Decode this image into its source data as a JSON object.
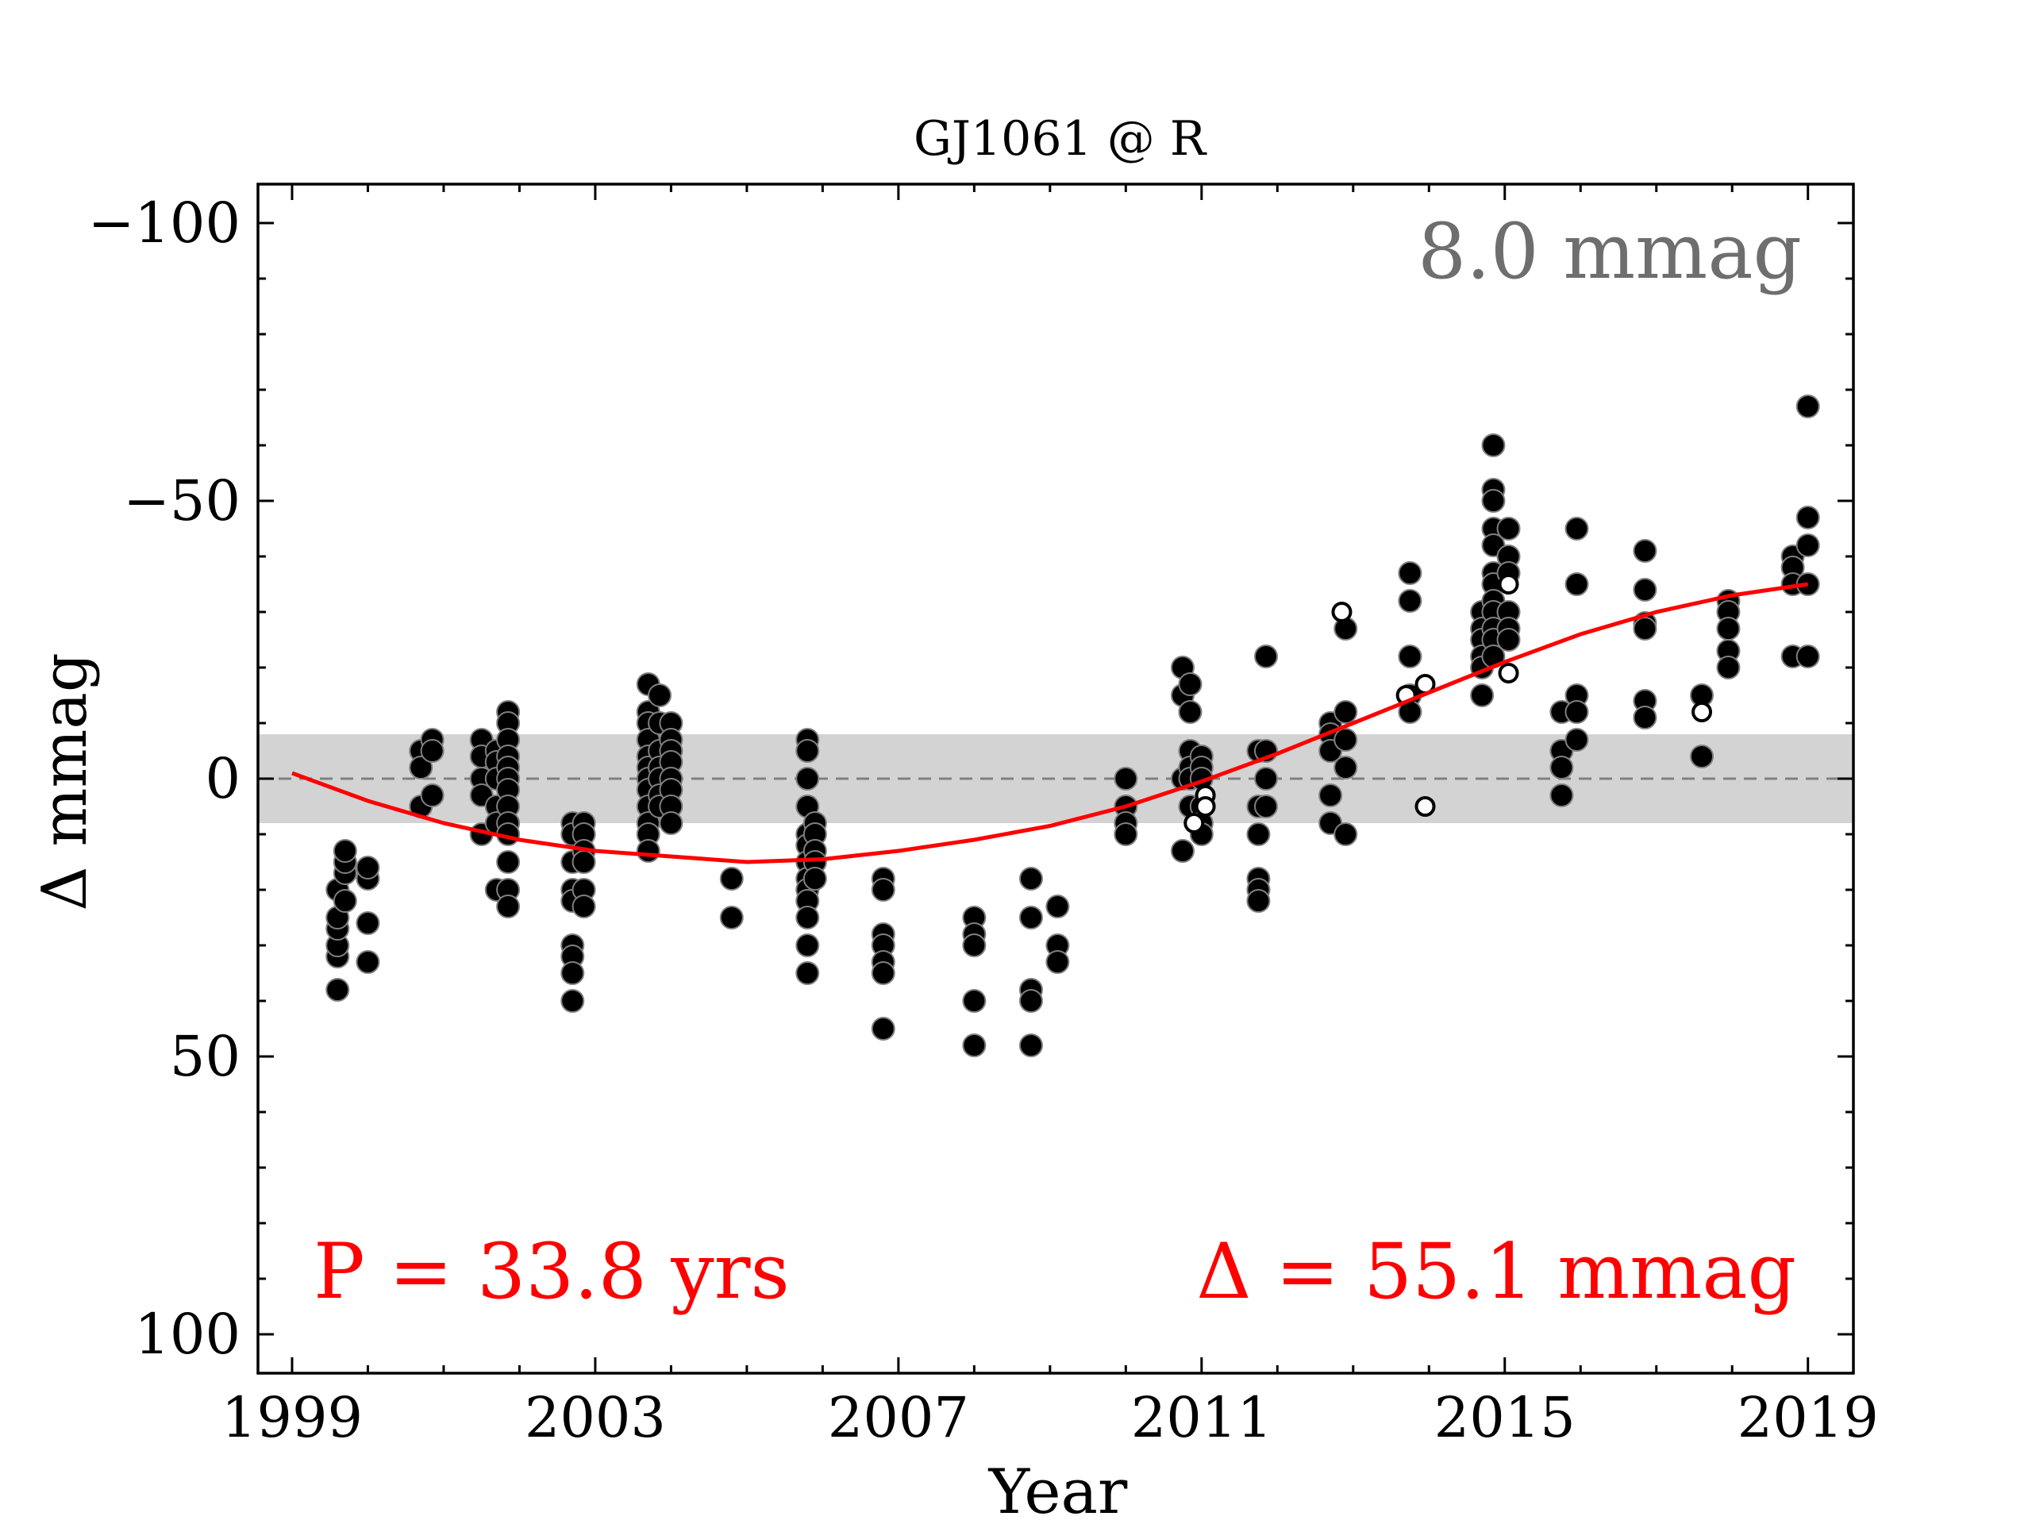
{
  "chart_data": {
    "type": "scatter",
    "title": "GJ1061 @ R",
    "xlabel": "Year",
    "ylabel": "Δ  mmag",
    "xlim": [
      1998.55,
      2019.6
    ],
    "ylim": [
      -107,
      107
    ],
    "y_inverted": true,
    "x_ticks": [
      1999,
      2003,
      2007,
      2011,
      2015,
      2019
    ],
    "x_tick_labels": [
      "1999",
      "2003",
      "2007",
      "2011",
      "2015",
      "2019"
    ],
    "y_ticks": [
      -100,
      -50,
      0,
      50,
      100
    ],
    "y_tick_labels": [
      "−100",
      "−50",
      "0",
      "50",
      "100"
    ],
    "band": {
      "y_min": -8,
      "y_max": 8,
      "color": "#d3d3d3"
    },
    "zero_line_color": "#808080",
    "fit_color": "#ff0000",
    "annotations": {
      "scatter_text": "8.0 mmag",
      "period_text": "P = 33.8 yrs",
      "amplitude_text": "Δ = 55.1 mmag",
      "scatter_color": "#6e6e6e",
      "fit_text_color": "#ff0000"
    },
    "fit_curve": {
      "x": [
        1999.0,
        2000.0,
        2001.0,
        2002.0,
        2003.0,
        2004.0,
        2005.0,
        2006.0,
        2007.0,
        2008.0,
        2009.0,
        2010.0,
        2011.0,
        2012.0,
        2013.0,
        2014.0,
        2015.0,
        2016.0,
        2017.0,
        2018.0,
        2019.0
      ],
      "y": [
        -1,
        4,
        8,
        11,
        13,
        14,
        15,
        14.5,
        13,
        11,
        8.5,
        5,
        0.5,
        -4.5,
        -10,
        -15.5,
        -21,
        -26,
        -30,
        -33,
        -35
      ]
    },
    "series": [
      {
        "marker": "filled",
        "points": [
          [
            1999.6,
            38
          ],
          [
            1999.6,
            32
          ],
          [
            1999.6,
            30
          ],
          [
            1999.6,
            27
          ],
          [
            1999.6,
            25
          ],
          [
            1999.6,
            20
          ],
          [
            1999.7,
            22
          ],
          [
            1999.7,
            17
          ],
          [
            1999.7,
            15
          ],
          [
            1999.7,
            13
          ],
          [
            2000.0,
            33
          ],
          [
            2000.0,
            26
          ],
          [
            2000.0,
            18
          ],
          [
            2000.0,
            16
          ],
          [
            2000.7,
            -5
          ],
          [
            2000.7,
            -2
          ],
          [
            2000.7,
            5
          ],
          [
            2000.85,
            -7
          ],
          [
            2000.85,
            -5
          ],
          [
            2000.85,
            3
          ],
          [
            2001.5,
            -7
          ],
          [
            2001.5,
            -4
          ],
          [
            2001.5,
            0
          ],
          [
            2001.5,
            3
          ],
          [
            2001.5,
            10
          ],
          [
            2001.7,
            -5
          ],
          [
            2001.7,
            -3
          ],
          [
            2001.7,
            0
          ],
          [
            2001.7,
            5
          ],
          [
            2001.7,
            8
          ],
          [
            2001.7,
            20
          ],
          [
            2001.85,
            -12
          ],
          [
            2001.85,
            -10
          ],
          [
            2001.85,
            -7
          ],
          [
            2001.85,
            -4
          ],
          [
            2001.85,
            -2
          ],
          [
            2001.85,
            0
          ],
          [
            2001.85,
            2
          ],
          [
            2001.85,
            5
          ],
          [
            2001.85,
            8
          ],
          [
            2001.85,
            10
          ],
          [
            2001.85,
            15
          ],
          [
            2001.85,
            20
          ],
          [
            2001.85,
            23
          ],
          [
            2002.7,
            8
          ],
          [
            2002.7,
            10
          ],
          [
            2002.7,
            15
          ],
          [
            2002.7,
            20
          ],
          [
            2002.7,
            22
          ],
          [
            2002.7,
            30
          ],
          [
            2002.7,
            32
          ],
          [
            2002.7,
            35
          ],
          [
            2002.7,
            40
          ],
          [
            2002.85,
            8
          ],
          [
            2002.85,
            10
          ],
          [
            2002.85,
            13
          ],
          [
            2002.85,
            15
          ],
          [
            2002.85,
            20
          ],
          [
            2002.85,
            23
          ],
          [
            2003.7,
            -17
          ],
          [
            2003.7,
            -12
          ],
          [
            2003.7,
            -10
          ],
          [
            2003.7,
            -7
          ],
          [
            2003.7,
            -4
          ],
          [
            2003.7,
            -2
          ],
          [
            2003.7,
            0
          ],
          [
            2003.7,
            2
          ],
          [
            2003.7,
            5
          ],
          [
            2003.7,
            8
          ],
          [
            2003.7,
            10
          ],
          [
            2003.7,
            13
          ],
          [
            2003.85,
            -15
          ],
          [
            2003.85,
            -10
          ],
          [
            2003.85,
            -5
          ],
          [
            2003.85,
            -2
          ],
          [
            2003.85,
            0
          ],
          [
            2003.85,
            3
          ],
          [
            2003.85,
            5
          ],
          [
            2004.0,
            -10
          ],
          [
            2004.0,
            -7
          ],
          [
            2004.0,
            -5
          ],
          [
            2004.0,
            -3
          ],
          [
            2004.0,
            0
          ],
          [
            2004.0,
            2
          ],
          [
            2004.0,
            5
          ],
          [
            2004.0,
            8
          ],
          [
            2004.8,
            18
          ],
          [
            2004.8,
            25
          ],
          [
            2005.8,
            -7
          ],
          [
            2005.8,
            -5
          ],
          [
            2005.8,
            0
          ],
          [
            2005.8,
            5
          ],
          [
            2005.8,
            10
          ],
          [
            2005.8,
            12
          ],
          [
            2005.8,
            15
          ],
          [
            2005.8,
            18
          ],
          [
            2005.8,
            20
          ],
          [
            2005.8,
            22
          ],
          [
            2005.8,
            25
          ],
          [
            2005.8,
            30
          ],
          [
            2005.8,
            35
          ],
          [
            2005.9,
            8
          ],
          [
            2005.9,
            10
          ],
          [
            2005.9,
            13
          ],
          [
            2005.9,
            15
          ],
          [
            2005.9,
            18
          ],
          [
            2006.8,
            18
          ],
          [
            2006.8,
            20
          ],
          [
            2006.8,
            28
          ],
          [
            2006.8,
            30
          ],
          [
            2006.8,
            33
          ],
          [
            2006.8,
            35
          ],
          [
            2006.8,
            45
          ],
          [
            2008.0,
            25
          ],
          [
            2008.0,
            28
          ],
          [
            2008.0,
            30
          ],
          [
            2008.0,
            40
          ],
          [
            2008.0,
            48
          ],
          [
            2008.75,
            18
          ],
          [
            2008.75,
            25
          ],
          [
            2008.75,
            38
          ],
          [
            2008.75,
            40
          ],
          [
            2008.75,
            48
          ],
          [
            2009.1,
            23
          ],
          [
            2009.1,
            30
          ],
          [
            2009.1,
            33
          ],
          [
            2010.0,
            0
          ],
          [
            2010.0,
            5
          ],
          [
            2010.0,
            8
          ],
          [
            2010.0,
            10
          ],
          [
            2010.75,
            -20
          ],
          [
            2010.75,
            -15
          ],
          [
            2010.75,
            0
          ],
          [
            2010.75,
            13
          ],
          [
            2010.85,
            -17
          ],
          [
            2010.85,
            -12
          ],
          [
            2010.85,
            -5
          ],
          [
            2010.85,
            -2
          ],
          [
            2010.85,
            0
          ],
          [
            2010.85,
            5
          ],
          [
            2011.0,
            -4
          ],
          [
            2011.0,
            -2
          ],
          [
            2011.0,
            0
          ],
          [
            2011.0,
            5
          ],
          [
            2011.0,
            8
          ],
          [
            2011.0,
            10
          ],
          [
            2011.75,
            -5
          ],
          [
            2011.75,
            5
          ],
          [
            2011.75,
            10
          ],
          [
            2011.75,
            18
          ],
          [
            2011.75,
            20
          ],
          [
            2011.75,
            22
          ],
          [
            2011.85,
            -22
          ],
          [
            2011.85,
            -5
          ],
          [
            2011.85,
            0
          ],
          [
            2011.85,
            5
          ],
          [
            2012.7,
            -10
          ],
          [
            2012.7,
            -8
          ],
          [
            2012.7,
            -5
          ],
          [
            2012.7,
            3
          ],
          [
            2012.7,
            8
          ],
          [
            2012.9,
            -27
          ],
          [
            2012.9,
            -12
          ],
          [
            2012.9,
            -7
          ],
          [
            2012.9,
            -2
          ],
          [
            2012.9,
            10
          ],
          [
            2013.75,
            -37
          ],
          [
            2013.75,
            -32
          ],
          [
            2013.75,
            -22
          ],
          [
            2013.75,
            -15
          ],
          [
            2013.75,
            -12
          ],
          [
            2014.7,
            -30
          ],
          [
            2014.7,
            -27
          ],
          [
            2014.7,
            -25
          ],
          [
            2014.7,
            -22
          ],
          [
            2014.7,
            -20
          ],
          [
            2014.7,
            -15
          ],
          [
            2014.85,
            -60
          ],
          [
            2014.85,
            -52
          ],
          [
            2014.85,
            -50
          ],
          [
            2014.85,
            -45
          ],
          [
            2014.85,
            -42
          ],
          [
            2014.85,
            -37
          ],
          [
            2014.85,
            -35
          ],
          [
            2014.85,
            -32
          ],
          [
            2014.85,
            -30
          ],
          [
            2014.85,
            -27
          ],
          [
            2014.85,
            -25
          ],
          [
            2014.85,
            -22
          ],
          [
            2015.05,
            -45
          ],
          [
            2015.05,
            -40
          ],
          [
            2015.05,
            -37
          ],
          [
            2015.05,
            -30
          ],
          [
            2015.05,
            -27
          ],
          [
            2015.05,
            -25
          ],
          [
            2015.75,
            -12
          ],
          [
            2015.75,
            -5
          ],
          [
            2015.75,
            -2
          ],
          [
            2015.75,
            3
          ],
          [
            2015.95,
            -45
          ],
          [
            2015.95,
            -35
          ],
          [
            2015.95,
            -15
          ],
          [
            2015.95,
            -12
          ],
          [
            2015.95,
            -7
          ],
          [
            2016.85,
            -41
          ],
          [
            2016.85,
            -34
          ],
          [
            2016.85,
            -28
          ],
          [
            2016.85,
            -27
          ],
          [
            2016.85,
            -14
          ],
          [
            2016.85,
            -11
          ],
          [
            2017.6,
            -15
          ],
          [
            2017.6,
            -4
          ],
          [
            2017.95,
            -32
          ],
          [
            2017.95,
            -30
          ],
          [
            2017.95,
            -27
          ],
          [
            2017.95,
            -23
          ],
          [
            2017.95,
            -20
          ],
          [
            2018.8,
            -40
          ],
          [
            2018.8,
            -38
          ],
          [
            2018.8,
            -35
          ],
          [
            2018.8,
            -22
          ],
          [
            2019.0,
            -67
          ],
          [
            2019.0,
            -47
          ],
          [
            2019.0,
            -42
          ],
          [
            2019.0,
            -35
          ],
          [
            2019.0,
            -22
          ]
        ]
      },
      {
        "marker": "open",
        "points": [
          [
            2010.9,
            8
          ],
          [
            2011.05,
            3
          ],
          [
            2011.05,
            5
          ],
          [
            2012.85,
            -30
          ],
          [
            2013.7,
            -15
          ],
          [
            2013.95,
            -17
          ],
          [
            2013.95,
            5
          ],
          [
            2015.05,
            -35
          ],
          [
            2015.05,
            -19
          ],
          [
            2017.6,
            -12
          ]
        ]
      }
    ]
  }
}
